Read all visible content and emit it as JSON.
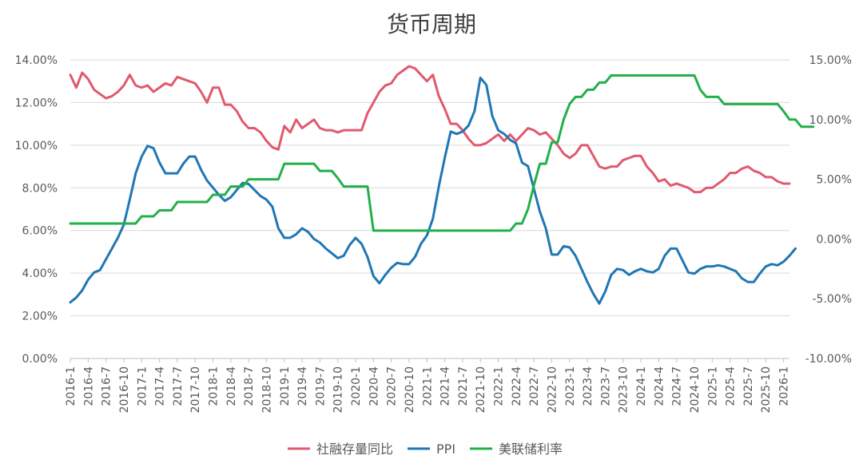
{
  "chart_data": {
    "type": "line",
    "title": "货币周期",
    "x_tick_labels": [
      "2016-1",
      "2016-4",
      "2016-7",
      "2016-10",
      "2017-1",
      "2017-4",
      "2017-7",
      "2017-10",
      "2018-1",
      "2018-4",
      "2018-7",
      "2018-10",
      "2019-1",
      "2019-4",
      "2019-7",
      "2019-10",
      "2020-1",
      "2020-4",
      "2020-7",
      "2020-10",
      "2021-1",
      "2021-4",
      "2021-7",
      "2021-10",
      "2022-1",
      "2022-4",
      "2022-7",
      "2022-10",
      "2023-1",
      "2023-4",
      "2023-7",
      "2023-10",
      "2024-1",
      "2024-4",
      "2024-7",
      "2024-10",
      "2025-1",
      "2025-4",
      "2025-7",
      "2025-10",
      "2026-1"
    ],
    "left_axis": {
      "min": 0,
      "max": 14,
      "step": 2,
      "tick_labels": [
        "0.00%",
        "2.00%",
        "4.00%",
        "6.00%",
        "8.00%",
        "10.00%",
        "12.00%",
        "14.00%"
      ]
    },
    "right_axis": {
      "min": -10,
      "max": 15,
      "step": 5,
      "tick_labels": [
        "-10.00%",
        "-5.00%",
        "0.00%",
        "5.00%",
        "10.00%",
        "15.00%"
      ]
    },
    "grid": "horizontal",
    "legend_position": "bottom",
    "series": [
      {
        "name": "社融存量同比",
        "axis": "left",
        "color": "#e05a6e",
        "values": [
          13.3,
          12.7,
          13.4,
          13.1,
          12.6,
          12.4,
          12.2,
          12.3,
          12.5,
          12.8,
          13.3,
          12.8,
          12.7,
          12.8,
          12.5,
          12.7,
          12.9,
          12.8,
          13.2,
          13.1,
          13.0,
          12.9,
          12.5,
          12.0,
          12.7,
          12.7,
          11.9,
          11.9,
          11.6,
          11.1,
          10.8,
          10.8,
          10.6,
          10.2,
          9.9,
          9.8,
          10.9,
          10.6,
          11.2,
          10.8,
          11.0,
          11.2,
          10.8,
          10.7,
          10.7,
          10.6,
          10.7,
          10.7,
          10.7,
          10.7,
          11.5,
          12.0,
          12.5,
          12.8,
          12.9,
          13.3,
          13.5,
          13.7,
          13.6,
          13.3,
          13.0,
          13.3,
          12.3,
          11.7,
          11.0,
          11.0,
          10.7,
          10.3,
          10.0,
          10.0,
          10.1,
          10.3,
          10.5,
          10.2,
          10.5,
          10.2,
          10.5,
          10.8,
          10.7,
          10.5,
          10.6,
          10.3,
          10.0,
          9.6,
          9.4,
          9.6,
          10.0,
          10.0,
          9.5,
          9.0,
          8.9,
          9.0,
          9.0,
          9.3,
          9.4,
          9.5,
          9.5,
          9.0,
          8.7,
          8.3,
          8.4,
          8.1,
          8.2,
          8.1,
          8.0,
          7.8,
          7.8,
          8.0,
          8.0,
          8.2,
          8.4,
          8.7,
          8.7,
          8.9,
          9.0,
          8.8,
          8.7,
          8.5,
          8.5,
          8.3,
          8.2,
          8.2
        ]
      },
      {
        "name": "PPI",
        "axis": "right",
        "color": "#1f77b4",
        "values": [
          -5.3,
          -4.9,
          -4.3,
          -3.4,
          -2.8,
          -2.6,
          -1.7,
          -0.8,
          0.1,
          1.2,
          3.3,
          5.5,
          6.9,
          7.8,
          7.6,
          6.4,
          5.5,
          5.5,
          5.5,
          6.3,
          6.9,
          6.9,
          5.8,
          4.9,
          4.3,
          3.7,
          3.2,
          3.5,
          4.1,
          4.7,
          4.6,
          4.1,
          3.6,
          3.3,
          2.7,
          0.9,
          0.1,
          0.1,
          0.4,
          0.9,
          0.6,
          0.0,
          -0.3,
          -0.8,
          -1.2,
          -1.6,
          -1.4,
          -0.5,
          0.1,
          -0.4,
          -1.5,
          -3.1,
          -3.7,
          -3.0,
          -2.4,
          -2.0,
          -2.1,
          -2.1,
          -1.5,
          -0.4,
          0.3,
          1.7,
          4.4,
          6.8,
          9.0,
          8.8,
          9.0,
          9.5,
          10.7,
          13.5,
          12.9,
          10.3,
          9.1,
          8.8,
          8.3,
          8.0,
          6.4,
          6.1,
          4.2,
          2.3,
          0.9,
          -1.3,
          -1.3,
          -0.6,
          -0.7,
          -1.4,
          -2.5,
          -3.6,
          -4.6,
          -5.4,
          -4.4,
          -3.0,
          -2.5,
          -2.6,
          -3.0,
          -2.7,
          -2.5,
          -2.7,
          -2.8,
          -2.5,
          -1.4,
          -0.8,
          -0.8,
          -1.8,
          -2.8,
          -2.9,
          -2.5,
          -2.3,
          -2.3,
          -2.2,
          -2.3,
          -2.5,
          -2.7,
          -3.3,
          -3.6,
          -3.6,
          -2.9,
          -2.3,
          -2.1,
          -2.2,
          -1.9,
          -1.4,
          -0.8
        ]
      },
      {
        "name": "美联储利率",
        "axis": "right",
        "color": "#22b04a",
        "values": [
          1.3,
          1.3,
          1.3,
          1.3,
          1.3,
          1.3,
          1.3,
          1.3,
          1.3,
          1.3,
          1.3,
          1.3,
          1.9,
          1.9,
          1.9,
          2.4,
          2.4,
          2.4,
          3.1,
          3.1,
          3.1,
          3.1,
          3.1,
          3.1,
          3.7,
          3.7,
          3.7,
          4.4,
          4.4,
          4.4,
          5.0,
          5.0,
          5.0,
          5.0,
          5.0,
          5.0,
          6.3,
          6.3,
          6.3,
          6.3,
          6.3,
          6.3,
          5.7,
          5.7,
          5.7,
          5.1,
          4.4,
          4.4,
          4.4,
          4.4,
          4.4,
          0.7,
          0.7,
          0.7,
          0.7,
          0.7,
          0.7,
          0.7,
          0.7,
          0.7,
          0.7,
          0.7,
          0.7,
          0.7,
          0.7,
          0.7,
          0.7,
          0.7,
          0.7,
          0.7,
          0.7,
          0.7,
          0.7,
          0.7,
          0.7,
          1.3,
          1.3,
          2.5,
          4.5,
          6.3,
          6.3,
          8.1,
          8.1,
          10.0,
          11.3,
          11.9,
          11.9,
          12.5,
          12.5,
          13.1,
          13.1,
          13.7,
          13.7,
          13.7,
          13.7,
          13.7,
          13.7,
          13.7,
          13.7,
          13.7,
          13.7,
          13.7,
          13.7,
          13.7,
          13.7,
          13.7,
          12.5,
          11.9,
          11.9,
          11.9,
          11.3,
          11.3,
          11.3,
          11.3,
          11.3,
          11.3,
          11.3,
          11.3,
          11.3,
          11.3,
          10.7,
          10.0,
          10.0,
          9.4,
          9.4,
          9.4
        ]
      }
    ]
  }
}
